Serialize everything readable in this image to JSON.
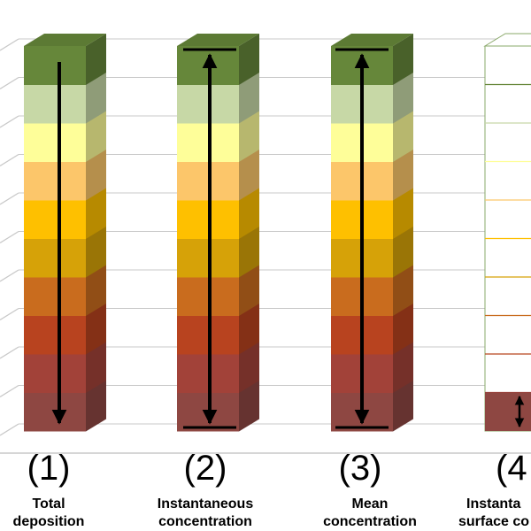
{
  "colors": {
    "layers": [
      "#66873a",
      "#c7d8a6",
      "#fefe99",
      "#fcc66a",
      "#fec000",
      "#d6a208",
      "#c96c1e",
      "#b8431f",
      "#a24239",
      "#8e4742"
    ],
    "background": "#ffffff",
    "grid": "#c8c8c8",
    "arrow": "#000000"
  },
  "columns": [
    {
      "number": "(1)",
      "caption_line1": "Total",
      "caption_line2": "deposition",
      "arrow": "down"
    },
    {
      "number": "(2)",
      "caption_line1": "Instantaneous",
      "caption_line2": "concentration",
      "arrow": "both"
    },
    {
      "number": "(3)",
      "caption_line1": "Mean",
      "caption_line2": "concentration",
      "arrow": "both"
    },
    {
      "number": "(4",
      "caption_line1": "Instanta",
      "caption_line2": "surface co",
      "arrow": "both-short"
    }
  ]
}
